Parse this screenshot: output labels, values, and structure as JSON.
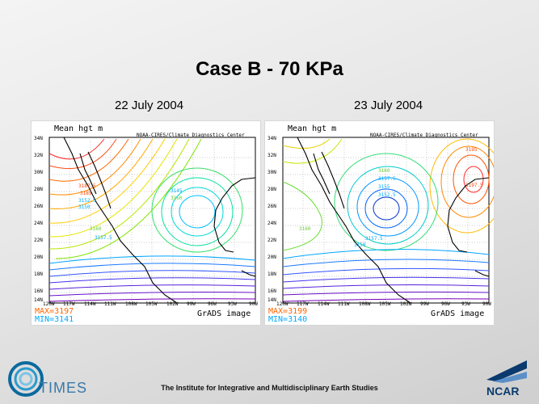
{
  "slide": {
    "title": "Case B - 70 KPa"
  },
  "colors": {
    "orange_text": "#ff6600",
    "cyan_text": "#00aaff",
    "ncar_blue": "#0a3a6e"
  },
  "panels": [
    {
      "date": "22 July 2004",
      "label": "Mean hgt m",
      "source": "NOAA-CIRES/Climate Diagnostics Center",
      "contour_labels": [
        "3187.5",
        "3185",
        "3152.5",
        "3150",
        "3145",
        "3160",
        "3160",
        "3157.5"
      ],
      "y_ticks": [
        "34N",
        "32N",
        "30N",
        "28N",
        "26N",
        "24N",
        "22N",
        "20N",
        "18N",
        "16N",
        "14N"
      ],
      "x_ticks": [
        "120W",
        "117W",
        "114W",
        "111W",
        "108W",
        "105W",
        "102W",
        "99W",
        "96W",
        "93W",
        "90W"
      ],
      "max": "MAX=3197",
      "min": "MIN=3141",
      "grads": "GrADS image"
    },
    {
      "date": "23 July 2004",
      "label": "Mean hgt m",
      "source": "NOAA-CIRES/Climate Diagnostics Center",
      "contour_labels": [
        "3195",
        "3197.5",
        "3160",
        "3157.5",
        "3155",
        "3152.5",
        "3160",
        "3157.5",
        "3150"
      ],
      "y_ticks": [
        "34N",
        "32N",
        "30N",
        "28N",
        "26N",
        "24N",
        "22N",
        "20N",
        "18N",
        "16N",
        "14N"
      ],
      "x_ticks": [
        "120W",
        "117W",
        "114W",
        "111W",
        "108W",
        "105W",
        "102W",
        "99W",
        "96W",
        "93W",
        "90W"
      ],
      "max": "MAX=3199",
      "min": "MIN=3140",
      "grads": "GrADS image"
    }
  ],
  "footer": {
    "institute": "The Institute for Integrative and Multidisciplinary Earth Studies"
  },
  "logos": {
    "times": "TIMES",
    "ncar": "NCAR"
  }
}
